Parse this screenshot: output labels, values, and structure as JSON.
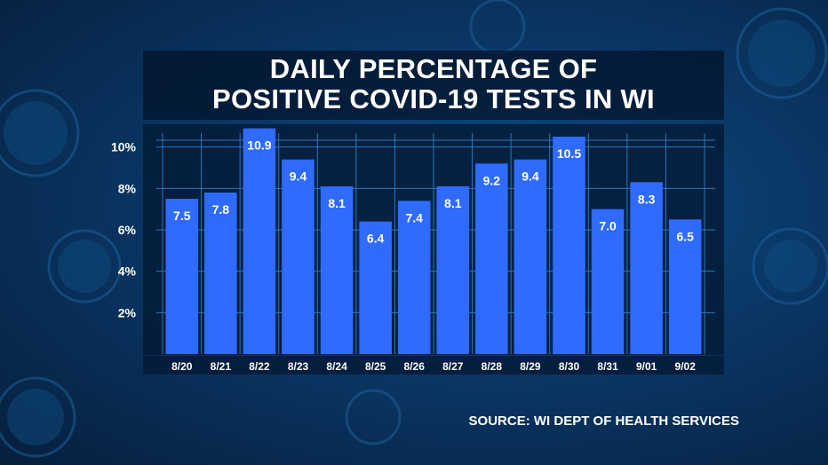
{
  "chart_data": {
    "type": "bar",
    "title": "DAILY PERCENTAGE OF\nPOSITIVE COVID-19 TESTS IN WI",
    "categories": [
      "8/20",
      "8/21",
      "8/22",
      "8/23",
      "8/24",
      "8/25",
      "8/26",
      "8/27",
      "8/28",
      "8/29",
      "8/30",
      "8/31",
      "9/01",
      "9/02"
    ],
    "values": [
      7.5,
      7.8,
      10.9,
      9.4,
      8.1,
      6.4,
      7.4,
      8.1,
      9.2,
      9.4,
      10.5,
      7.0,
      8.3,
      6.5
    ],
    "value_labels": [
      "7.5",
      "7.8",
      "10.9",
      "9.4",
      "8.1",
      "6.4",
      "7.4",
      "8.1",
      "9.2",
      "9.4",
      "10.5",
      "7.0",
      "8.3",
      "6.5"
    ],
    "yticks": [
      2,
      4,
      6,
      8,
      10
    ],
    "ytick_labels": [
      "2%",
      "4%",
      "6%",
      "8%",
      "10%"
    ],
    "ylim": [
      0,
      11.1
    ],
    "xlabel": "",
    "ylabel": "",
    "grid": true,
    "bar_color": "#2f6bff",
    "grid_color": "#2a78b8"
  },
  "source": "SOURCE: WI DEPT OF HEALTH SERVICES"
}
